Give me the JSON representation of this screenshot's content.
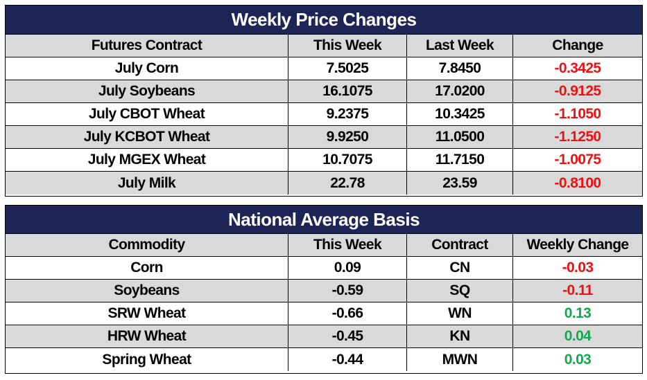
{
  "weekly_price_changes": {
    "title": "Weekly Price Changes",
    "headers": [
      "Futures Contract",
      "This Week",
      "Last Week",
      "Change"
    ],
    "rows": [
      {
        "contract": "July Corn",
        "this_week": "7.5025",
        "last_week": "7.8450",
        "change": "-0.3425",
        "change_color": "#ee1111"
      },
      {
        "contract": "July Soybeans",
        "this_week": "16.1075",
        "last_week": "17.0200",
        "change": "-0.9125",
        "change_color": "#ee1111"
      },
      {
        "contract": "July CBOT Wheat",
        "this_week": "9.2375",
        "last_week": "10.3425",
        "change": "-1.1050",
        "change_color": "#ee1111"
      },
      {
        "contract": "July KCBOT Wheat",
        "this_week": "9.9250",
        "last_week": "11.0500",
        "change": "-1.1250",
        "change_color": "#ee1111"
      },
      {
        "contract": "July MGEX Wheat",
        "this_week": "10.7075",
        "last_week": "11.7150",
        "change": "-1.0075",
        "change_color": "#ee1111"
      },
      {
        "contract": "July Milk",
        "this_week": "22.78",
        "last_week": "23.59",
        "change": "-0.8100",
        "change_color": "#ee1111"
      }
    ]
  },
  "national_average_basis": {
    "title": "National Average Basis",
    "headers": [
      "Commodity",
      "This Week",
      "Contract",
      "Weekly Change"
    ],
    "rows": [
      {
        "commodity": "Corn",
        "this_week": "0.09",
        "contract": "CN",
        "weekly_change": "-0.03",
        "change_color": "#ee1111"
      },
      {
        "commodity": "Soybeans",
        "this_week": "-0.59",
        "contract": "SQ",
        "weekly_change": "-0.11",
        "change_color": "#ee1111"
      },
      {
        "commodity": "SRW Wheat",
        "this_week": "-0.66",
        "contract": "WN",
        "weekly_change": "0.13",
        "change_color": "#11a84a"
      },
      {
        "commodity": "HRW Wheat",
        "this_week": "-0.45",
        "contract": "KN",
        "weekly_change": "0.04",
        "change_color": "#11a84a"
      },
      {
        "commodity": "Spring Wheat",
        "this_week": "-0.44",
        "contract": "MWN",
        "weekly_change": "0.03",
        "change_color": "#11a84a"
      }
    ]
  },
  "colors": {
    "header_bg": "#1d2556",
    "row_shade": "#d9d9d9",
    "negative": "#ee1111",
    "positive": "#11a84a"
  }
}
